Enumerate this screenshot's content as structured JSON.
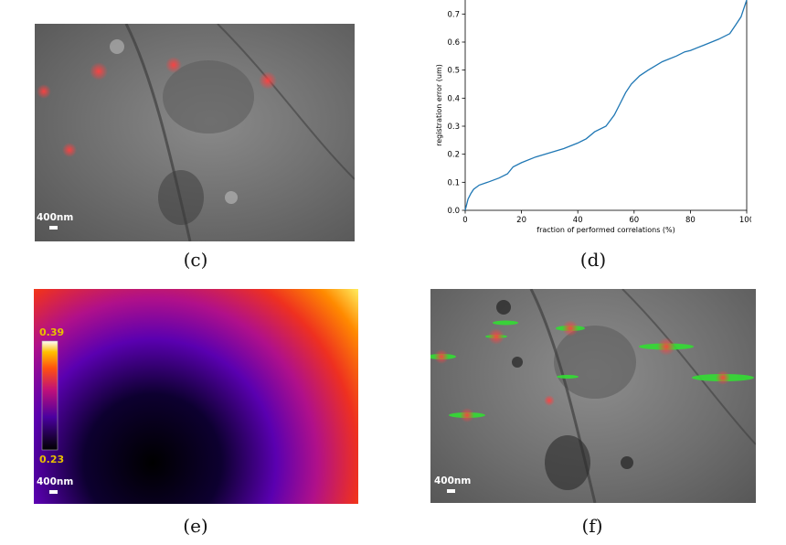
{
  "panels": {
    "c": {
      "caption": "(c)",
      "scalebar": "400nm"
    },
    "d": {
      "caption": "(d)"
    },
    "e": {
      "caption": "(e)",
      "scalebar": "400nm",
      "colorbar_max": "0.39",
      "colorbar_min": "0.23"
    },
    "f": {
      "caption": "(f)",
      "scalebar": "400nm"
    }
  },
  "colors": {
    "line": "#1f77b4",
    "colorbar_label": "#e8c000",
    "marker_red": "#ff3030",
    "marker_green": "#33dd33"
  },
  "chart_data": {
    "type": "line",
    "xlabel": "fraction of performed correlations (%)",
    "ylabel": "registration error (um)",
    "xlim": [
      0,
      100
    ],
    "ylim": [
      0,
      0.75
    ],
    "xticks": [
      0,
      20,
      40,
      60,
      80,
      100
    ],
    "yticks": [
      0.0,
      0.1,
      0.2,
      0.3,
      0.4,
      0.5,
      0.6,
      0.7
    ],
    "grid": false,
    "x": [
      0,
      1,
      2,
      3,
      5,
      8,
      12,
      15,
      17,
      20,
      25,
      30,
      35,
      40,
      43,
      46,
      50,
      53,
      55,
      57,
      59,
      62,
      65,
      70,
      75,
      78,
      80,
      85,
      90,
      94,
      96,
      98,
      99,
      100
    ],
    "y": [
      0.0,
      0.04,
      0.06,
      0.075,
      0.09,
      0.1,
      0.115,
      0.13,
      0.155,
      0.17,
      0.19,
      0.205,
      0.22,
      0.24,
      0.255,
      0.28,
      0.3,
      0.34,
      0.38,
      0.42,
      0.45,
      0.48,
      0.5,
      0.53,
      0.55,
      0.565,
      0.57,
      0.59,
      0.61,
      0.63,
      0.66,
      0.69,
      0.72,
      0.75
    ]
  }
}
